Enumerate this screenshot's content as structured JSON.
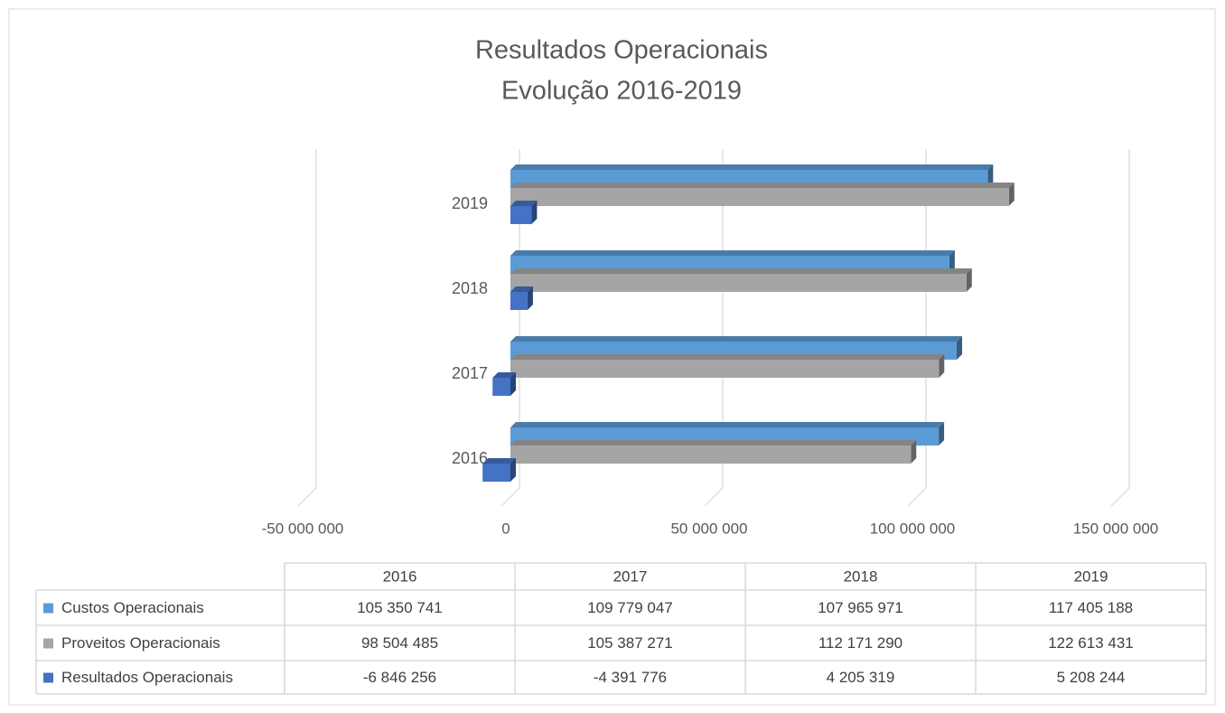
{
  "chart_data": {
    "type": "bar",
    "orientation": "horizontal",
    "title": "Resultados Operacionais",
    "subtitle": "Evolução 2016-2019",
    "categories": [
      "2016",
      "2017",
      "2018",
      "2019"
    ],
    "series": [
      {
        "name": "Custos Operacionais",
        "color": "#5b9bd5",
        "values": [
          105350741,
          109779047,
          107965971,
          117405188
        ],
        "value_labels": [
          "105 350 741",
          "109 779 047",
          "107 965 971",
          "117 405 188"
        ]
      },
      {
        "name": "Proveitos Operacionais",
        "color": "#a5a5a5",
        "values": [
          98504485,
          105387271,
          112171290,
          122613431
        ],
        "value_labels": [
          "98 504 485",
          "105 387 271",
          "112 171 290",
          "122 613 431"
        ]
      },
      {
        "name": "Resultados Operacionais",
        "color": "#4472c4",
        "values": [
          -6846256,
          -4391776,
          4205319,
          5208244
        ],
        "value_labels": [
          "-6 846 256",
          "-4 391 776",
          "4 205 319",
          "5 208 244"
        ]
      }
    ],
    "xlim": [
      -50000000,
      150000000
    ],
    "xticks": [
      {
        "value": -50000000,
        "label": "-50 000 000"
      },
      0,
      {
        "value": 50000000,
        "label": "50 000 000"
      },
      {
        "value": 100000000,
        "label": "100 000 000"
      },
      {
        "value": 150000000,
        "label": "150 000 000"
      }
    ],
    "grid": true,
    "data_table": true
  }
}
